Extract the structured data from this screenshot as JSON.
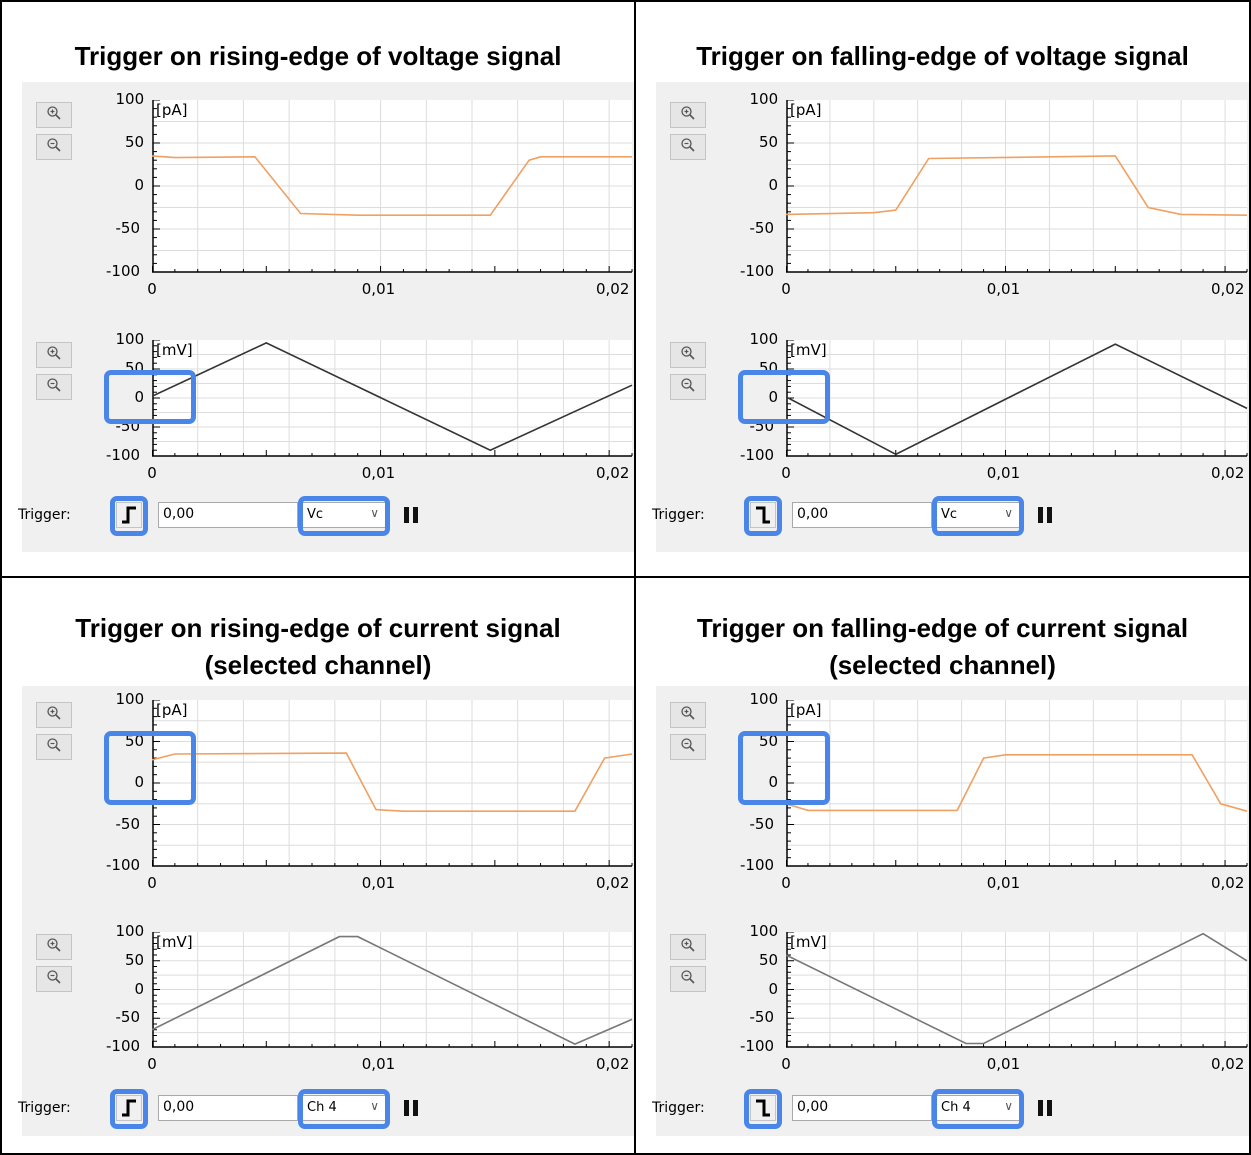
{
  "panels": [
    {
      "title_lines": [
        "Trigger on rising-edge of voltage signal"
      ],
      "edge": "rising",
      "top_chart": {
        "unit": "[pA]",
        "color": "#f0a060",
        "points": [
          [
            0,
            35
          ],
          [
            0.001,
            33
          ],
          [
            0.0045,
            34
          ],
          [
            0.0065,
            -32
          ],
          [
            0.009,
            -34
          ],
          [
            0.0148,
            -34
          ],
          [
            0.0165,
            30
          ],
          [
            0.017,
            34
          ],
          [
            0.021,
            34
          ]
        ]
      },
      "bottom_chart": {
        "unit": "[mV]",
        "color": "#333333",
        "points": [
          [
            0,
            3
          ],
          [
            0.005,
            95
          ],
          [
            0.0148,
            -90
          ],
          [
            0.021,
            22
          ]
        ]
      },
      "trigger": {
        "label": "Trigger:",
        "level": "0,00",
        "channel": "Vc"
      },
      "highlight": "bottom"
    },
    {
      "title_lines": [
        "Trigger on falling-edge of voltage signal"
      ],
      "edge": "falling",
      "top_chart": {
        "unit": "[pA]",
        "color": "#f0a060",
        "points": [
          [
            0,
            -33
          ],
          [
            0.004,
            -31
          ],
          [
            0.005,
            -28
          ],
          [
            0.0065,
            32
          ],
          [
            0.015,
            35
          ],
          [
            0.0165,
            -25
          ],
          [
            0.018,
            -33
          ],
          [
            0.021,
            -34
          ]
        ]
      },
      "bottom_chart": {
        "unit": "[mV]",
        "color": "#333333",
        "points": [
          [
            0,
            2
          ],
          [
            0.005,
            -97
          ],
          [
            0.015,
            93
          ],
          [
            0.021,
            -18
          ]
        ]
      },
      "trigger": {
        "label": "Trigger:",
        "level": "0,00",
        "channel": "Vc"
      },
      "highlight": "bottom"
    },
    {
      "title_lines": [
        "Trigger on rising-edge of current signal",
        "(selected channel)"
      ],
      "edge": "rising",
      "top_chart": {
        "unit": "[pA]",
        "color": "#f0a060",
        "points": [
          [
            0,
            28
          ],
          [
            0.001,
            35
          ],
          [
            0.0085,
            36
          ],
          [
            0.0098,
            -32
          ],
          [
            0.011,
            -34
          ],
          [
            0.0185,
            -34
          ],
          [
            0.0198,
            30
          ],
          [
            0.021,
            35
          ]
        ]
      },
      "bottom_chart": {
        "unit": "[mV]",
        "color": "#777777",
        "points": [
          [
            0,
            -70
          ],
          [
            0.0082,
            92
          ],
          [
            0.009,
            92
          ],
          [
            0.0185,
            -95
          ],
          [
            0.021,
            -52
          ]
        ]
      },
      "trigger": {
        "label": "Trigger:",
        "level": "0,00",
        "channel": "Ch 4"
      },
      "highlight": "top"
    },
    {
      "title_lines": [
        "Trigger on falling-edge of current signal",
        "(selected channel)"
      ],
      "edge": "falling",
      "top_chart": {
        "unit": "[pA]",
        "color": "#f0a060",
        "points": [
          [
            0,
            -25
          ],
          [
            0.001,
            -33
          ],
          [
            0.0078,
            -33
          ],
          [
            0.009,
            30
          ],
          [
            0.01,
            34
          ],
          [
            0.0185,
            34
          ],
          [
            0.0198,
            -25
          ],
          [
            0.021,
            -34
          ]
        ]
      },
      "bottom_chart": {
        "unit": "[mV]",
        "color": "#777777",
        "points": [
          [
            0,
            60
          ],
          [
            0.0082,
            -94
          ],
          [
            0.009,
            -94
          ],
          [
            0.019,
            97
          ],
          [
            0.021,
            50
          ]
        ]
      },
      "trigger": {
        "label": "Trigger:",
        "level": "0,00",
        "channel": "Ch 4"
      },
      "highlight": "top"
    }
  ],
  "axes": {
    "y_ticks": [
      "100",
      "50",
      "0",
      "-50",
      "-100"
    ],
    "x_ticks": [
      "0",
      "0,01",
      "0,02"
    ]
  },
  "icons": {
    "zoom_in": "zoom-in-icon",
    "zoom_out": "zoom-out-icon",
    "pause": "pause-icon"
  },
  "colors": {
    "highlight": "#4a86e8",
    "current_trace": "#f0a060",
    "voltage_trace": "#333333",
    "grid": "#dddddd",
    "plot_bg": "#ffffff",
    "panel_bg": "#f0f0f0"
  }
}
